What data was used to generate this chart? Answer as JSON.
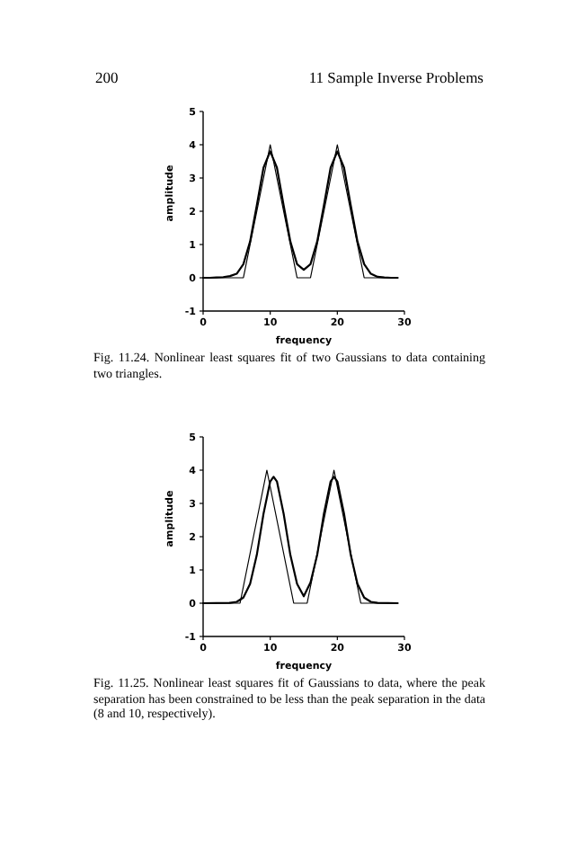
{
  "chart_data": [
    {
      "type": "line",
      "xlabel": "frequency",
      "ylabel": "amplitude",
      "xlim": [
        0,
        30
      ],
      "ylim": [
        -1,
        5
      ],
      "xticks": [
        0,
        10,
        20,
        30
      ],
      "yticks": [
        -1,
        0,
        1,
        2,
        3,
        4,
        5
      ],
      "grid": false,
      "marker": "none",
      "line_style": "solid",
      "annotations": [
        "200",
        "11 Sample Inverse Problems",
        "Fig. 11.24.  Nonlinear least squares fit of two Gaussians to data containing two triangles."
      ],
      "series": [
        {
          "color": "#000000",
          "x": [
            0,
            6,
            10,
            14,
            16,
            20,
            24,
            29
          ],
          "values": [
            0,
            0,
            4,
            0,
            0,
            4,
            0,
            0
          ]
        },
        {
          "color": "#000000",
          "x": [
            0,
            1,
            2,
            3,
            4,
            5,
            6,
            7,
            8,
            9,
            10,
            11,
            12,
            13,
            14,
            15,
            16,
            17,
            18,
            19,
            20,
            21,
            22,
            23,
            24,
            25,
            26,
            27,
            28,
            29
          ],
          "values": [
            0,
            0,
            0.01,
            0.02,
            0.05,
            0.12,
            0.41,
            1.09,
            2.18,
            3.31,
            3.8,
            3.31,
            2.18,
            1.09,
            0.41,
            0.24,
            0.41,
            1.09,
            2.18,
            3.31,
            3.8,
            3.31,
            2.18,
            1.09,
            0.41,
            0.12,
            0.03,
            0.01,
            0,
            0
          ]
        }
      ]
    },
    {
      "type": "line",
      "xlabel": "frequency",
      "ylabel": "amplitude",
      "xlim": [
        0,
        30
      ],
      "ylim": [
        -1,
        5
      ],
      "xticks": [
        0,
        10,
        20,
        30
      ],
      "yticks": [
        -1,
        0,
        1,
        2,
        3,
        4,
        5
      ],
      "grid": false,
      "marker": "none",
      "line_style": "solid",
      "annotations": [
        "Fig. 11.25.  Nonlinear least squares fit of Gaussians to data, where the peak separation has been constrained to be less than the peak separation in the data (8 and 10, respectively)."
      ],
      "series": [
        {
          "color": "#000000",
          "x": [
            0,
            5.5,
            9.5,
            13.5,
            15.5,
            19.5,
            23.5,
            29
          ],
          "values": [
            0,
            0,
            4,
            0,
            0,
            4,
            0,
            0
          ]
        },
        {
          "color": "#000000",
          "x": [
            0,
            4,
            5,
            6,
            7,
            8,
            9,
            10,
            10.5,
            11,
            12,
            13,
            14,
            15,
            16,
            17,
            18,
            19,
            19.5,
            20,
            21,
            22,
            23,
            24,
            25,
            26,
            29
          ],
          "values": [
            0,
            0.01,
            0.04,
            0.17,
            0.58,
            1.45,
            2.69,
            3.66,
            3.8,
            3.66,
            2.69,
            1.45,
            0.58,
            0.21,
            0.62,
            1.45,
            2.69,
            3.66,
            3.8,
            3.66,
            2.69,
            1.45,
            0.58,
            0.17,
            0.04,
            0.01,
            0
          ]
        }
      ]
    }
  ]
}
